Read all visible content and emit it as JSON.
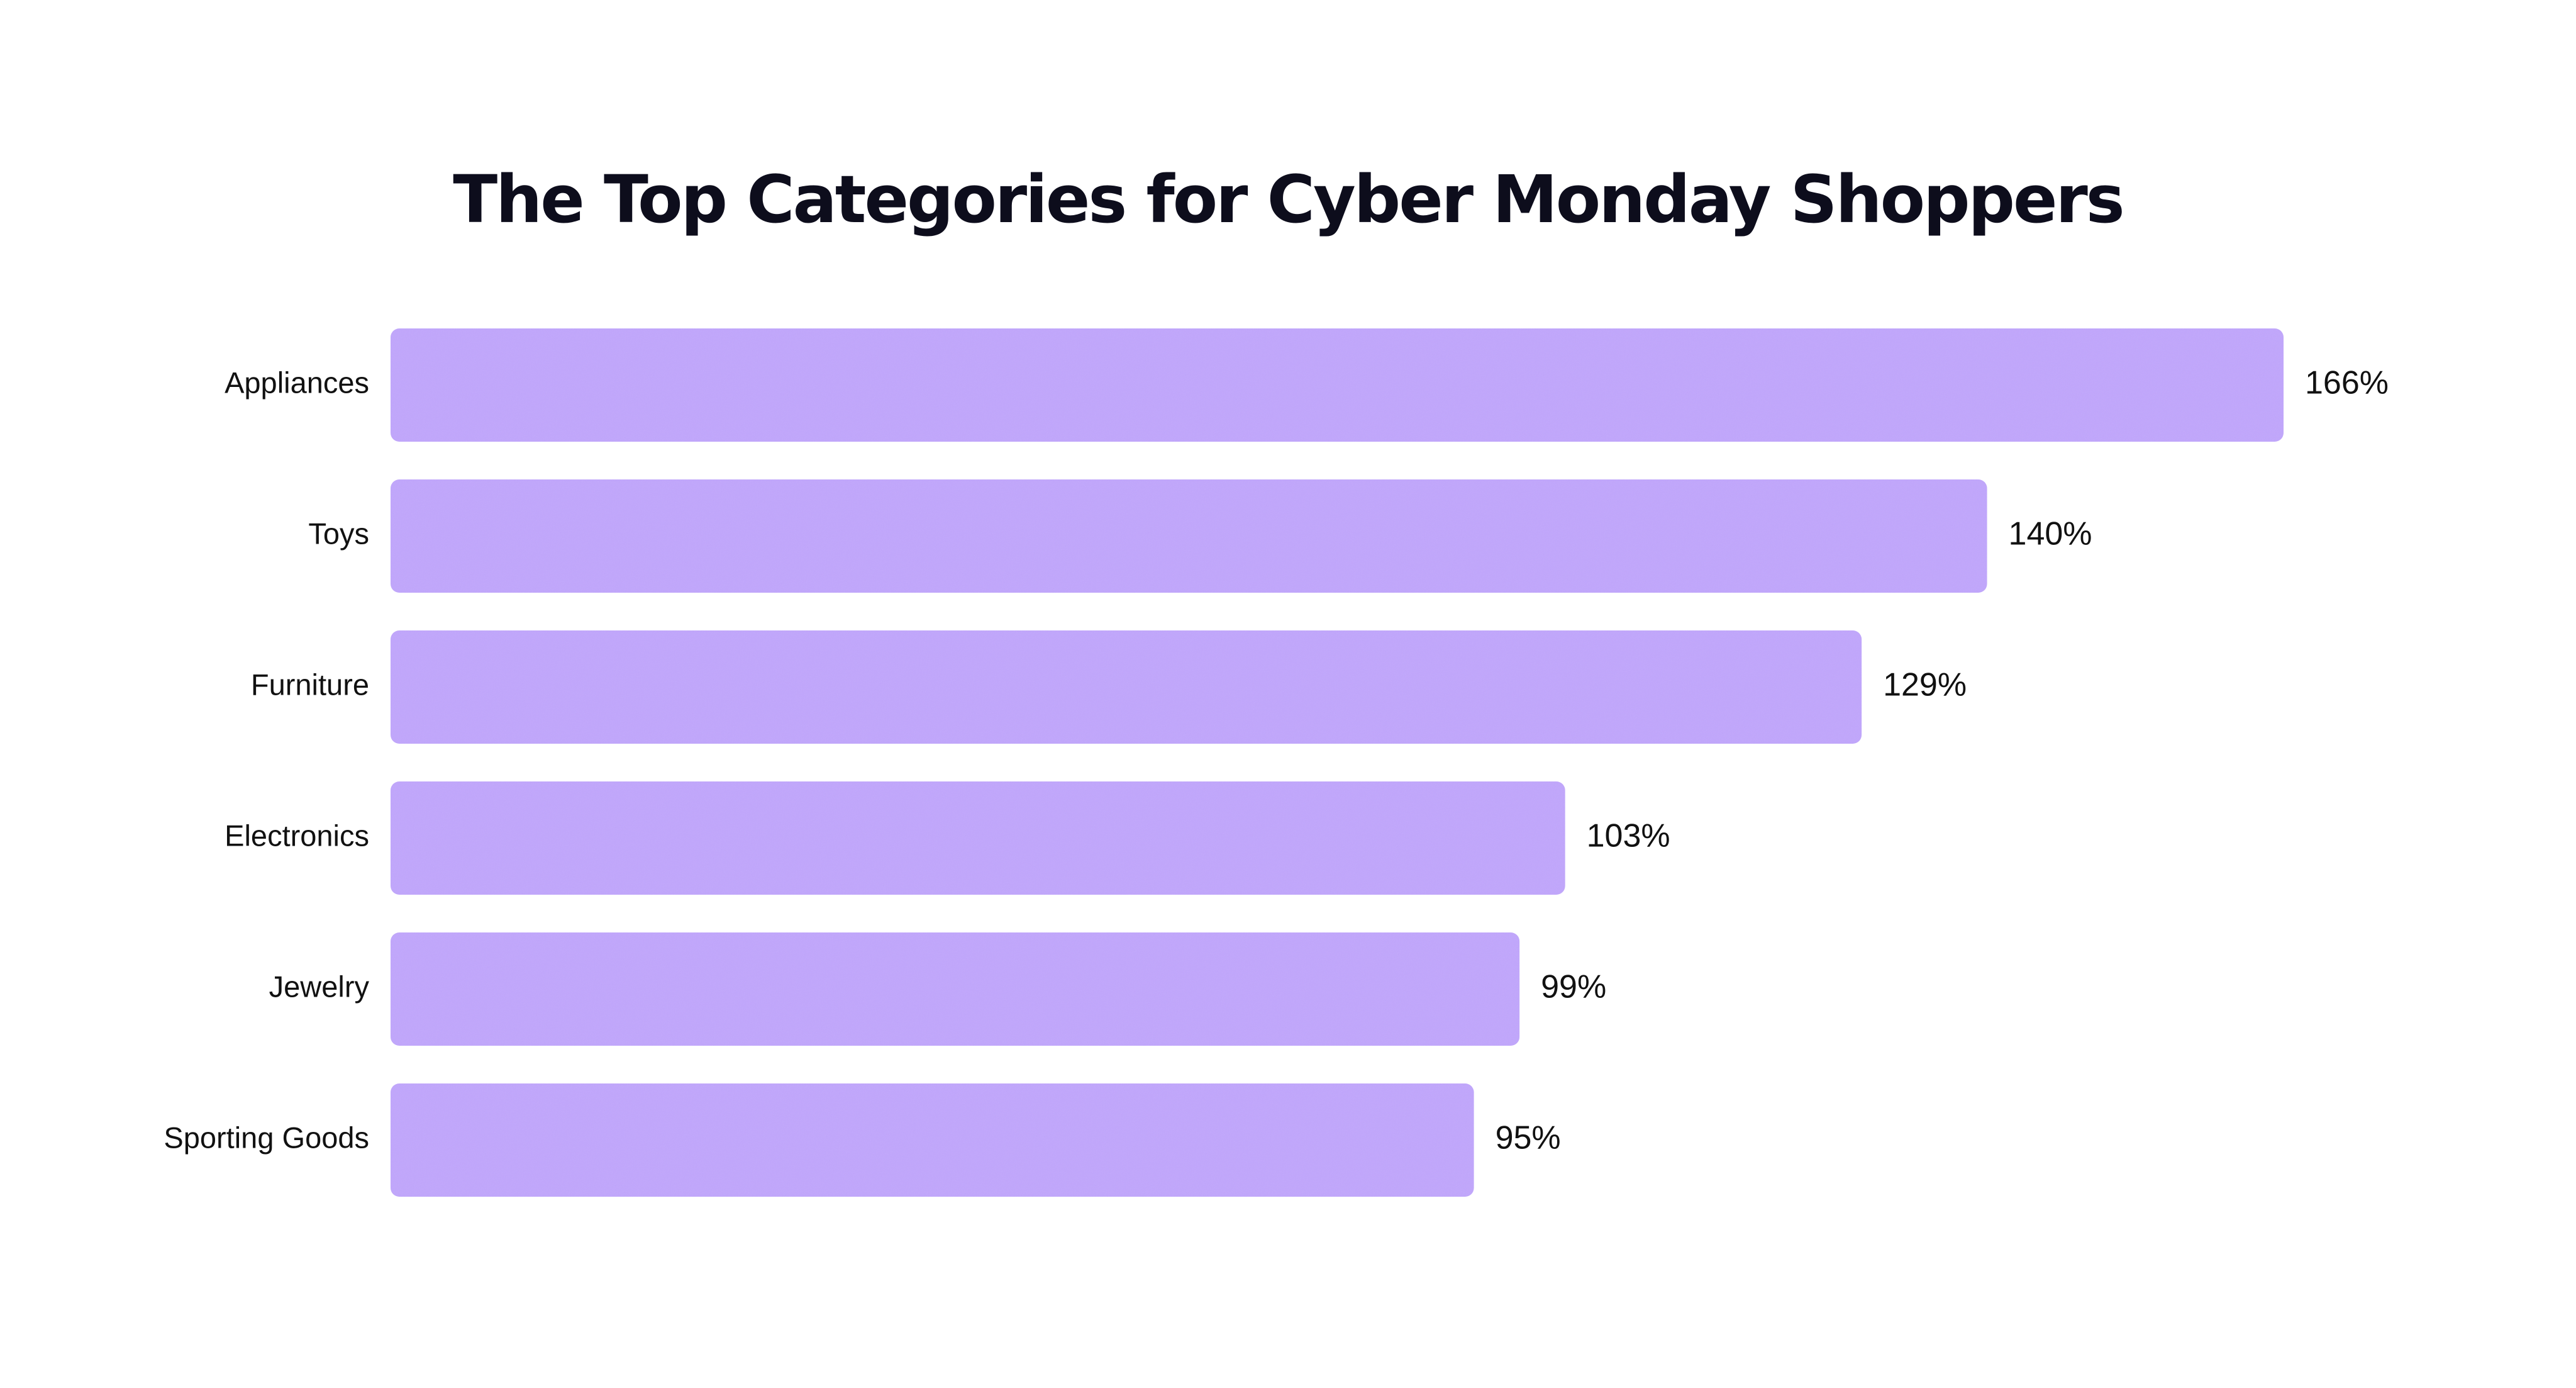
{
  "chart_data": {
    "type": "bar",
    "orientation": "horizontal",
    "title": "The Top Categories for Cyber Monday Shoppers",
    "categories": [
      "Appliances",
      "Toys",
      "Furniture",
      "Electronics",
      "Jewelry",
      "Sporting Goods"
    ],
    "values": [
      166,
      140,
      129,
      103,
      99,
      95
    ],
    "value_labels": [
      "166%",
      "140%",
      "129%",
      "103%",
      "99%",
      "95%"
    ],
    "unit": "%",
    "xlim": [
      0,
      166
    ],
    "xlabel": "",
    "ylabel": "",
    "grid": false,
    "legend": "none",
    "bar_color": "#c1a6fd",
    "text_color": "#111111",
    "title_color": "#0d0d1c"
  }
}
